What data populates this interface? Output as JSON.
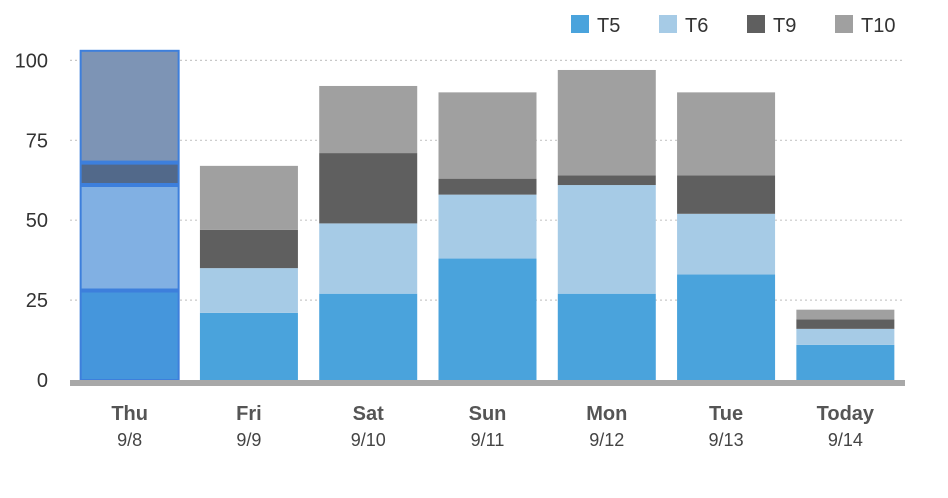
{
  "chart_data": {
    "type": "bar",
    "stacked": true,
    "categories": [
      "Thu",
      "Fri",
      "Sat",
      "Sun",
      "Mon",
      "Tue",
      "Today"
    ],
    "dates": [
      "9/8",
      "9/9",
      "9/10",
      "9/11",
      "9/12",
      "9/13",
      "9/14"
    ],
    "series": [
      {
        "name": "T5",
        "color": "#4aa3dc",
        "values": [
          28,
          21,
          27,
          38,
          27,
          33,
          11
        ]
      },
      {
        "name": "T6",
        "color": "#a6cbe6",
        "values": [
          33,
          14,
          22,
          20,
          34,
          19,
          5
        ]
      },
      {
        "name": "T9",
        "color": "#5f5f5f",
        "values": [
          7,
          12,
          22,
          5,
          3,
          12,
          3
        ]
      },
      {
        "name": "T10",
        "color": "#a0a0a0",
        "values": [
          35,
          20,
          21,
          27,
          33,
          26,
          3
        ]
      }
    ],
    "yticks": [
      0,
      25,
      50,
      75,
      100
    ],
    "ylim": [
      0,
      102
    ],
    "grid": true,
    "legend": "top-right",
    "selected_category": "Thu",
    "selection_color": "#3d7fdc"
  }
}
